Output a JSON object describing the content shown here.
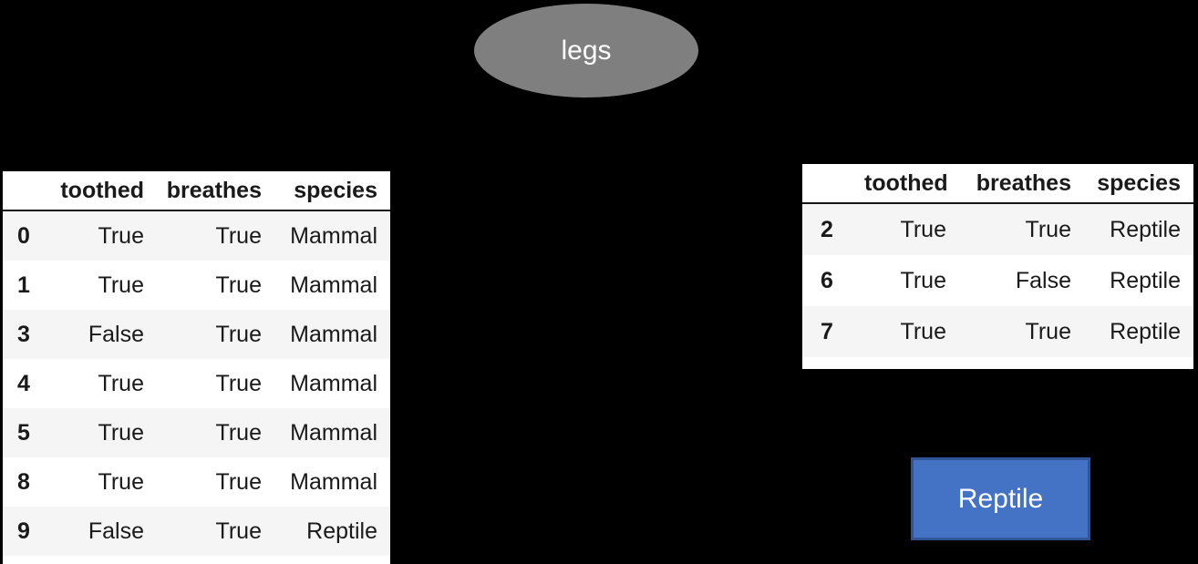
{
  "diagram": {
    "root_node": {
      "label": "legs"
    },
    "leaf_node": {
      "label": "Reptile"
    },
    "colors": {
      "background": "#000000",
      "node_fill": "#7f7f7f",
      "node_text": "#ffffff",
      "leaf_fill": "#4472c4",
      "leaf_border": "#2f5597",
      "leaf_text": "#ffffff",
      "table_stripe": "#f5f5f5",
      "table_text": "#1a1a1a"
    }
  },
  "left_table": {
    "columns": [
      "toothed",
      "breathes",
      "species"
    ],
    "rows": [
      {
        "index": "0",
        "cells": [
          "True",
          "True",
          "Mammal"
        ]
      },
      {
        "index": "1",
        "cells": [
          "True",
          "True",
          "Mammal"
        ]
      },
      {
        "index": "3",
        "cells": [
          "False",
          "True",
          "Mammal"
        ]
      },
      {
        "index": "4",
        "cells": [
          "True",
          "True",
          "Mammal"
        ]
      },
      {
        "index": "5",
        "cells": [
          "True",
          "True",
          "Mammal"
        ]
      },
      {
        "index": "8",
        "cells": [
          "True",
          "True",
          "Mammal"
        ]
      },
      {
        "index": "9",
        "cells": [
          "False",
          "True",
          "Reptile"
        ]
      }
    ]
  },
  "right_table": {
    "columns": [
      "toothed",
      "breathes",
      "species"
    ],
    "rows": [
      {
        "index": "2",
        "cells": [
          "True",
          "True",
          "Reptile"
        ]
      },
      {
        "index": "6",
        "cells": [
          "True",
          "False",
          "Reptile"
        ]
      },
      {
        "index": "7",
        "cells": [
          "True",
          "True",
          "Reptile"
        ]
      }
    ]
  }
}
